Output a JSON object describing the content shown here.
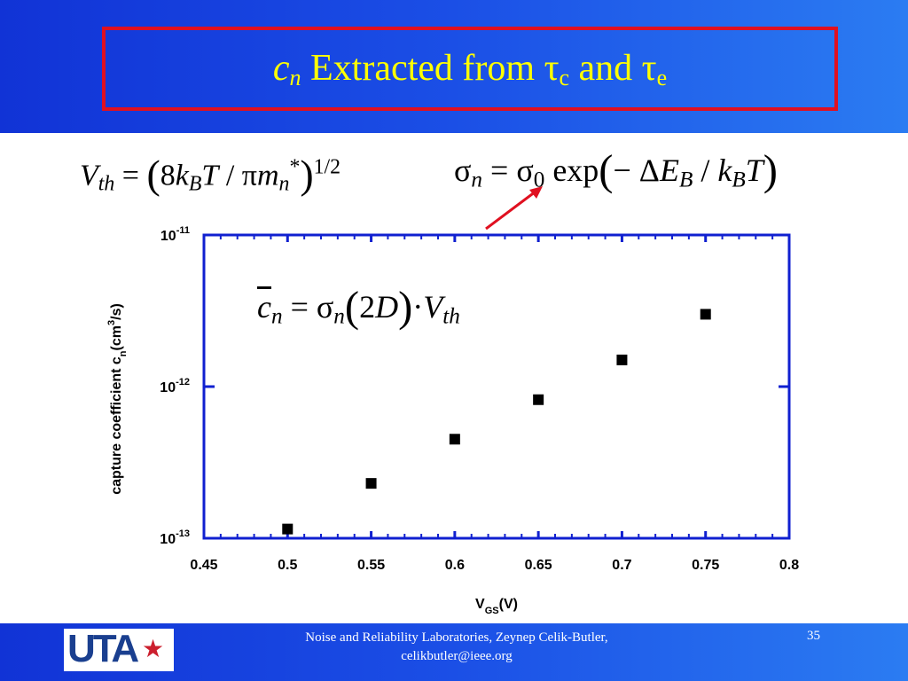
{
  "slide": {
    "title_var": "c",
    "title_var_sub": "n",
    "title_text": "Extracted from",
    "tau": "τ",
    "tau_c_sub": "c",
    "title_and": "and",
    "tau_e_sub": "e",
    "eq_vth": {
      "lhs": "V",
      "lhs_sub": "th",
      "eq": " = ",
      "lparen": "(",
      "body_8": "8",
      "k": "k",
      "k_sub": "B",
      "T": "T",
      "slash": " / ",
      "pi": "π",
      "m": "m",
      "m_sub": "n",
      "m_sup": "*",
      "rparen": ")",
      "power": "1/2"
    },
    "eq_sigma": {
      "sigma": "σ",
      "sigma_sub": "n",
      "eq": " = ",
      "sigma0_sub": "0",
      "exp": " exp",
      "lparen": "(",
      "minus": "− ",
      "delta": "Δ",
      "E": "E",
      "E_sub": "B",
      "slash": " / ",
      "k": "k",
      "k_sub": "B",
      "T": "T",
      "rparen": ")"
    },
    "eq_cn": {
      "c": "c",
      "c_sub": "n",
      "eq": " = ",
      "sigma": "σ",
      "sigma_sub": "n",
      "lparen": "(",
      "two": "2",
      "D": "D",
      "rparen": ")",
      "dot": "·",
      "V": "V",
      "V_sub": "th"
    },
    "colors": {
      "header": "#1b4fe6",
      "title": "#ffff00",
      "title_border": "#e01020",
      "axis": "#1020d0",
      "arrow": "#e01020"
    }
  },
  "footer": {
    "line1": "Noise and Reliability Laboratories, Zeynep Celik-Butler,",
    "line2": "celikbutler@ieee.org",
    "page": "35",
    "logo": "UTA",
    "logo_star": "★"
  },
  "chart_data": {
    "type": "scatter",
    "x": [
      0.5,
      0.55,
      0.6,
      0.65,
      0.7,
      0.75
    ],
    "y": [
      1.15e-13,
      2.3e-13,
      4.5e-13,
      8.2e-13,
      1.5e-12,
      3e-12
    ],
    "xlim": [
      0.45,
      0.8
    ],
    "ylim": [
      1e-13,
      1e-11
    ],
    "yscale": "log",
    "xticks": [
      "0.45",
      "0.5",
      "0.55",
      "0.6",
      "0.65",
      "0.7",
      "0.75",
      "0.8"
    ],
    "yticks": [
      {
        "base": "10",
        "exp": "-11"
      },
      {
        "base": "10",
        "exp": "-12"
      },
      {
        "base": "10",
        "exp": "-13"
      }
    ],
    "xlabel": {
      "main": "V",
      "sub": "GS",
      "rest": "(V)"
    },
    "ylabel": {
      "main": "capture coefficient c",
      "sub": "n",
      "mid": "(cm",
      "sup": "3",
      "rest": "/s)"
    },
    "marker": "square",
    "grid": false
  }
}
